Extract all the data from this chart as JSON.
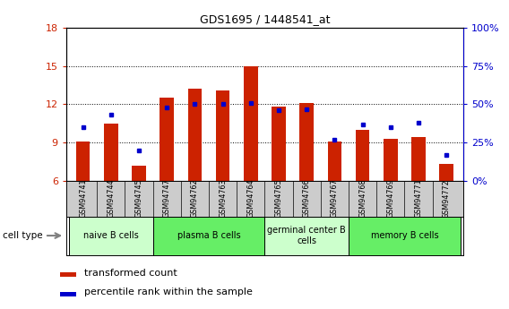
{
  "title": "GDS1695 / 1448541_at",
  "samples": [
    "GSM94741",
    "GSM94744",
    "GSM94745",
    "GSM94747",
    "GSM94762",
    "GSM94763",
    "GSM94764",
    "GSM94765",
    "GSM94766",
    "GSM94767",
    "GSM94768",
    "GSM94769",
    "GSM94771",
    "GSM94772"
  ],
  "transformed_count": [
    9.1,
    10.5,
    7.2,
    12.5,
    13.2,
    13.1,
    15.0,
    11.8,
    12.1,
    9.1,
    10.0,
    9.3,
    9.4,
    7.3
  ],
  "percentile_rank": [
    35,
    43,
    20,
    48,
    50,
    50,
    51,
    46,
    47,
    27,
    37,
    35,
    38,
    17
  ],
  "ylim_left": [
    6,
    18
  ],
  "ylim_right": [
    0,
    100
  ],
  "yticks_left": [
    6,
    9,
    12,
    15,
    18
  ],
  "yticks_right": [
    0,
    25,
    50,
    75,
    100
  ],
  "bar_color": "#cc2200",
  "dot_color": "#0000cc",
  "groups": [
    {
      "label": "naive B cells",
      "start": 0,
      "end": 3,
      "color": "#ccffcc"
    },
    {
      "label": "plasma B cells",
      "start": 3,
      "end": 7,
      "color": "#66ee66"
    },
    {
      "label": "germinal center B\ncells",
      "start": 7,
      "end": 10,
      "color": "#ccffcc"
    },
    {
      "label": "memory B cells",
      "start": 10,
      "end": 14,
      "color": "#66ee66"
    }
  ],
  "legend_bar_label": "transformed count",
  "legend_dot_label": "percentile rank within the sample",
  "cell_type_label": "cell type",
  "tick_label_color_left": "#cc2200",
  "tick_label_color_right": "#0000cc",
  "xlabel_bgcolor": "#cccccc",
  "bar_width": 0.5
}
